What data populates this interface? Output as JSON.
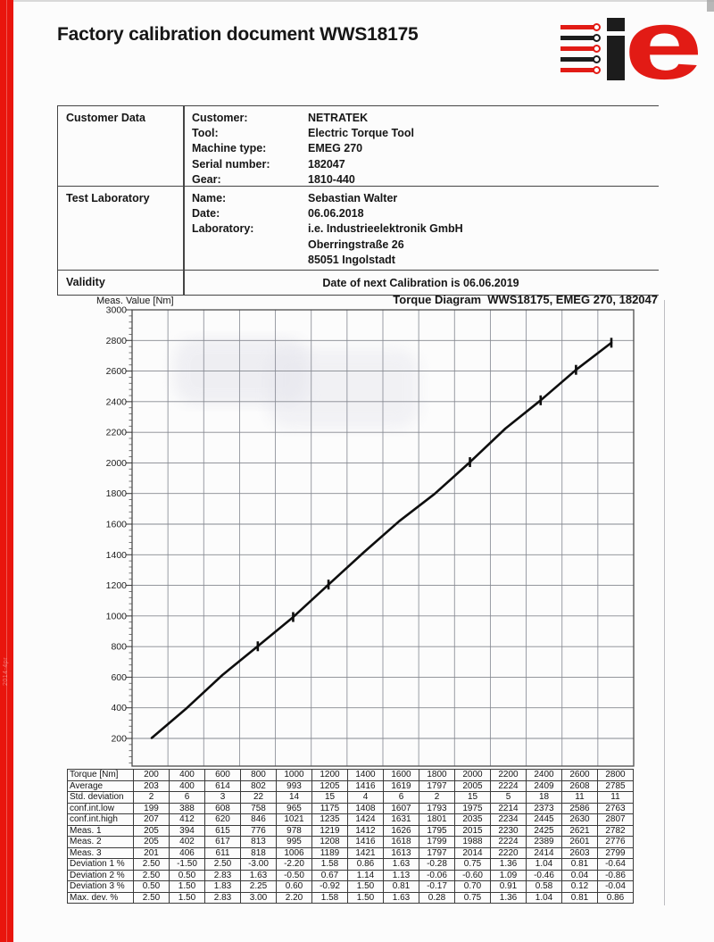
{
  "page": {
    "title": "Factory calibration document WWS18175",
    "side_code": "2014-4pr"
  },
  "logo": {
    "red": "#e21b15",
    "black": "#1c1c1c",
    "bars": [
      "red",
      "black",
      "red",
      "black",
      "red"
    ],
    "letter_i": "i",
    "letter_e": "e"
  },
  "info": {
    "customer_section": {
      "heading": "Customer Data",
      "rows": [
        {
          "label": "Customer:",
          "value": "NETRATEK"
        },
        {
          "label": "Tool:",
          "value": "Electric Torque Tool"
        },
        {
          "label": "Machine type:",
          "value": "EMEG 270"
        },
        {
          "label": "Serial number:",
          "value": "182047"
        },
        {
          "label": "Gear:",
          "value": "1810-440"
        }
      ]
    },
    "lab_section": {
      "heading": "Test Laboratory",
      "rows": [
        {
          "label": "Name:",
          "value": "Sebastian Walter"
        },
        {
          "label": "Date:",
          "value": "06.06.2018"
        },
        {
          "label": "Laboratory:",
          "value": "i.e. Industrieelektronik GmbH"
        },
        {
          "label": "",
          "value": "Oberringstraße 26"
        },
        {
          "label": "",
          "value": "85051 Ingolstadt"
        }
      ]
    },
    "validity_section": {
      "heading": "Validity",
      "value": "Date of next Calibration is 06.06.2019"
    }
  },
  "chart_data": {
    "type": "line",
    "title": "Torque Diagram  WWS18175, EMEG 270, 182047",
    "ylabel": "Meas. Value [Nm]",
    "x": [
      200,
      400,
      600,
      800,
      1000,
      1200,
      1400,
      1600,
      1800,
      2000,
      2200,
      2400,
      2600,
      2800
    ],
    "series": [
      {
        "name": "Average",
        "values": [
          203,
          400,
          614,
          802,
          993,
          1205,
          1416,
          1619,
          1797,
          2005,
          2224,
          2409,
          2608,
          2785
        ]
      }
    ],
    "ylim": [
      0,
      3000
    ],
    "ytick_start": 200,
    "ytick_step": 200,
    "yminor_step": 40,
    "grid": true,
    "grid_columns": 14,
    "marker_points": [
      800,
      1000,
      1200,
      2000,
      2400,
      2600,
      2800
    ],
    "line_color": "#0e0e0e",
    "legend_position": "none"
  },
  "table": {
    "header": {
      "label": "Torque [Nm]",
      "values": [
        "200",
        "400",
        "600",
        "800",
        "1000",
        "1200",
        "1400",
        "1600",
        "1800",
        "2000",
        "2200",
        "2400",
        "2600",
        "2800"
      ]
    },
    "rows": [
      {
        "label": "Average",
        "values": [
          "203",
          "400",
          "614",
          "802",
          "993",
          "1205",
          "1416",
          "1619",
          "1797",
          "2005",
          "2224",
          "2409",
          "2608",
          "2785"
        ]
      },
      {
        "label": "Std. deviation",
        "values": [
          "2",
          "6",
          "3",
          "22",
          "14",
          "15",
          "4",
          "6",
          "2",
          "15",
          "5",
          "18",
          "11",
          "11"
        ]
      },
      {
        "label": "conf.int.low",
        "values": [
          "199",
          "388",
          "608",
          "758",
          "965",
          "1175",
          "1408",
          "1607",
          "1793",
          "1975",
          "2214",
          "2373",
          "2586",
          "2763"
        ]
      },
      {
        "label": "conf.int.high",
        "values": [
          "207",
          "412",
          "620",
          "846",
          "1021",
          "1235",
          "1424",
          "1631",
          "1801",
          "2035",
          "2234",
          "2445",
          "2630",
          "2807"
        ]
      },
      {
        "label": "Meas. 1",
        "values": [
          "205",
          "394",
          "615",
          "776",
          "978",
          "1219",
          "1412",
          "1626",
          "1795",
          "2015",
          "2230",
          "2425",
          "2621",
          "2782"
        ]
      },
      {
        "label": "Meas. 2",
        "values": [
          "205",
          "402",
          "617",
          "813",
          "995",
          "1208",
          "1416",
          "1618",
          "1799",
          "1988",
          "2224",
          "2389",
          "2601",
          "2776"
        ]
      },
      {
        "label": "Meas. 3",
        "values": [
          "201",
          "406",
          "611",
          "818",
          "1006",
          "1189",
          "1421",
          "1613",
          "1797",
          "2014",
          "2220",
          "2414",
          "2603",
          "2799"
        ]
      },
      {
        "label": "Deviation 1 %",
        "values": [
          "2.50",
          "-1.50",
          "2.50",
          "-3.00",
          "-2.20",
          "1.58",
          "0.86",
          "1.63",
          "-0.28",
          "0.75",
          "1.36",
          "1.04",
          "0.81",
          "-0.64"
        ]
      },
      {
        "label": "Deviation 2 %",
        "values": [
          "2.50",
          "0.50",
          "2.83",
          "1.63",
          "-0.50",
          "0.67",
          "1.14",
          "1.13",
          "-0.06",
          "-0.60",
          "1.09",
          "-0.46",
          "0.04",
          "-0.86"
        ]
      },
      {
        "label": "Deviation 3 %",
        "values": [
          "0.50",
          "1.50",
          "1.83",
          "2.25",
          "0.60",
          "-0.92",
          "1.50",
          "0.81",
          "-0.17",
          "0.70",
          "0.91",
          "0.58",
          "0.12",
          "-0.04"
        ]
      },
      {
        "label": "Max. dev. %",
        "values": [
          "2.50",
          "1.50",
          "2.83",
          "3.00",
          "2.20",
          "1.58",
          "1.50",
          "1.63",
          "0.28",
          "0.75",
          "1.36",
          "1.04",
          "0.81",
          "0.86"
        ]
      }
    ]
  }
}
